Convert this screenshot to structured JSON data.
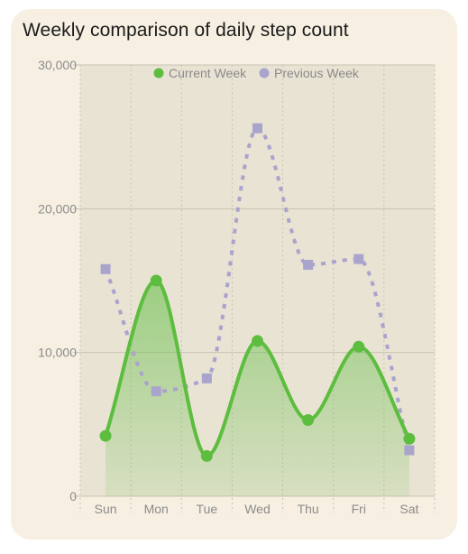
{
  "title": "Weekly comparison of daily step count",
  "colors": {
    "card_bg": "#f6efe2",
    "plot_bg": "#e9e3d4",
    "current": "#5cbd3e",
    "previous": "#a9a4cc",
    "grid": "#c9c3b4"
  },
  "chart_data": {
    "type": "line",
    "title": "Weekly comparison of daily step count",
    "categories": [
      "Sun",
      "Mon",
      "Tue",
      "Wed",
      "Thu",
      "Fri",
      "Sat"
    ],
    "ylim": [
      0,
      30000
    ],
    "yticks": [
      0,
      10000,
      20000,
      30000
    ],
    "ytick_labels": [
      "0",
      "10,000",
      "20,000",
      "30,000"
    ],
    "legend_position": "top-center",
    "series": [
      {
        "name": "Current Week",
        "style": "smooth-area",
        "marker": "circle",
        "color": "#5cbd3e",
        "values": [
          4200,
          15000,
          2800,
          10800,
          5300,
          10400,
          4000
        ]
      },
      {
        "name": "Previous Week",
        "style": "dotted",
        "marker": "square",
        "color": "#a9a4cc",
        "values": [
          15800,
          7300,
          8200,
          25600,
          16100,
          16500,
          3200
        ]
      }
    ]
  }
}
